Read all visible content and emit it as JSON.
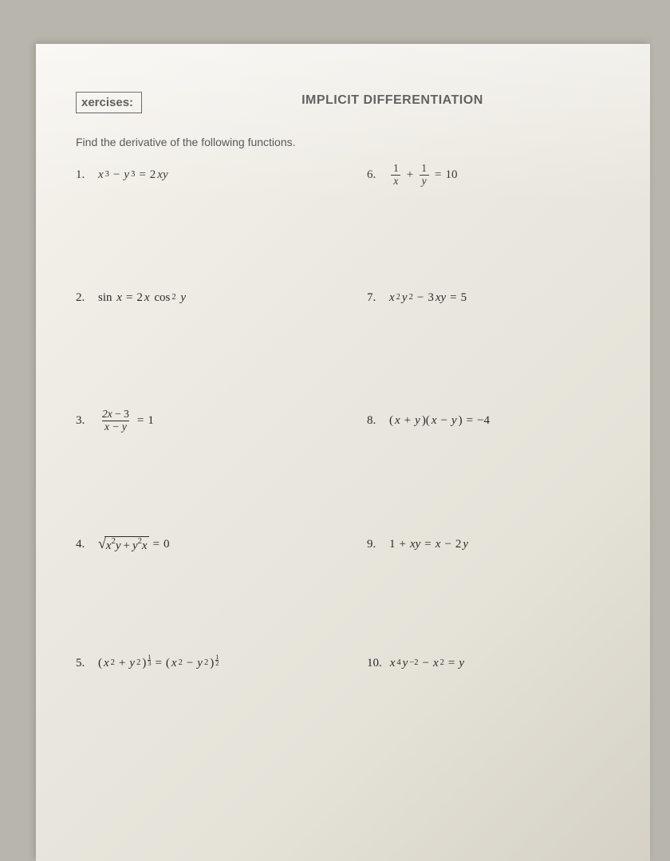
{
  "header": {
    "exercises_label": "xercises:",
    "title": "IMPLICIT DIFFERENTIATION"
  },
  "instruction": "Find the derivative of the following functions.",
  "problems": {
    "left": [
      {
        "num": "1.",
        "equation": "x^3 - y^3 = 2xy"
      },
      {
        "num": "2.",
        "equation": "sin x = 2x cos^2 y"
      },
      {
        "num": "3.",
        "equation": "(2x - 3)/(x - y) = 1"
      },
      {
        "num": "4.",
        "equation": "sqrt(x^2 y + y^2 x) = 0"
      },
      {
        "num": "5.",
        "equation": "(x^2 + y^2)^(1/3) = (x^2 - y^2)^(1/2)"
      }
    ],
    "right": [
      {
        "num": "6.",
        "equation": "1/x + 1/y = 10"
      },
      {
        "num": "7.",
        "equation": "x^2 y^2 - 3xy = 5"
      },
      {
        "num": "8.",
        "equation": "(x + y)(x - y) = -4"
      },
      {
        "num": "9.",
        "equation": "1 + xy = x - 2y"
      },
      {
        "num": "10.",
        "equation": "x^4 y^-2 - x^2 = y"
      }
    ]
  },
  "colors": {
    "text": "#2a2a2a",
    "paper_light": "#f5f3ed",
    "paper_dark": "#d5d1c6",
    "backdrop": "#b8b5ac"
  }
}
